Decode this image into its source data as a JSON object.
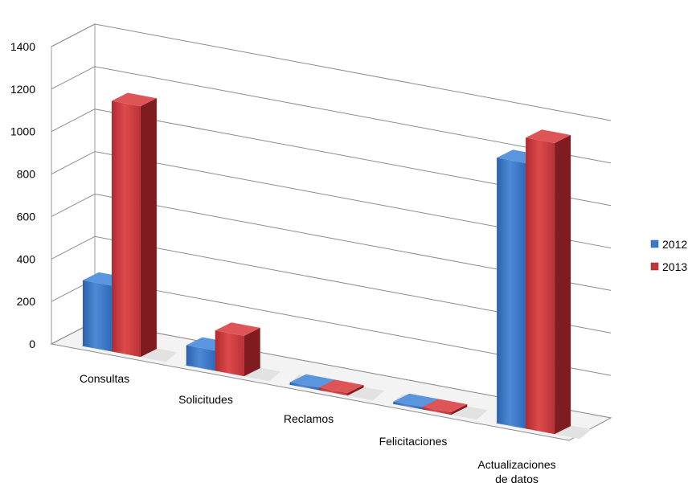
{
  "chart_data": {
    "type": "bar",
    "variant": "3d-clustered-column",
    "categories": [
      "Consultas",
      "Solicitudes",
      "Reclamos",
      "Felicitaciones",
      "Actualizaciones de datos"
    ],
    "category_lines": [
      [
        "Consultas"
      ],
      [
        "Solicitudes"
      ],
      [
        "Reclamos"
      ],
      [
        "Felicitaciones"
      ],
      [
        "Actualizaciones",
        "de datos"
      ]
    ],
    "series": [
      {
        "name": "2012",
        "values": [
          310,
          95,
          0,
          0,
          1250
        ],
        "color": "#3B78C8"
      },
      {
        "name": "2013",
        "values": [
          1180,
          190,
          0,
          0,
          1370
        ],
        "color": "#C0373A"
      }
    ],
    "yticks": [
      "1400",
      "1200",
      "1000",
      "800",
      "600",
      "400",
      "200",
      "0"
    ],
    "ylim": [
      0,
      1400
    ],
    "grid": true,
    "legend": "right",
    "title": "",
    "xlabel": "",
    "ylabel": ""
  }
}
